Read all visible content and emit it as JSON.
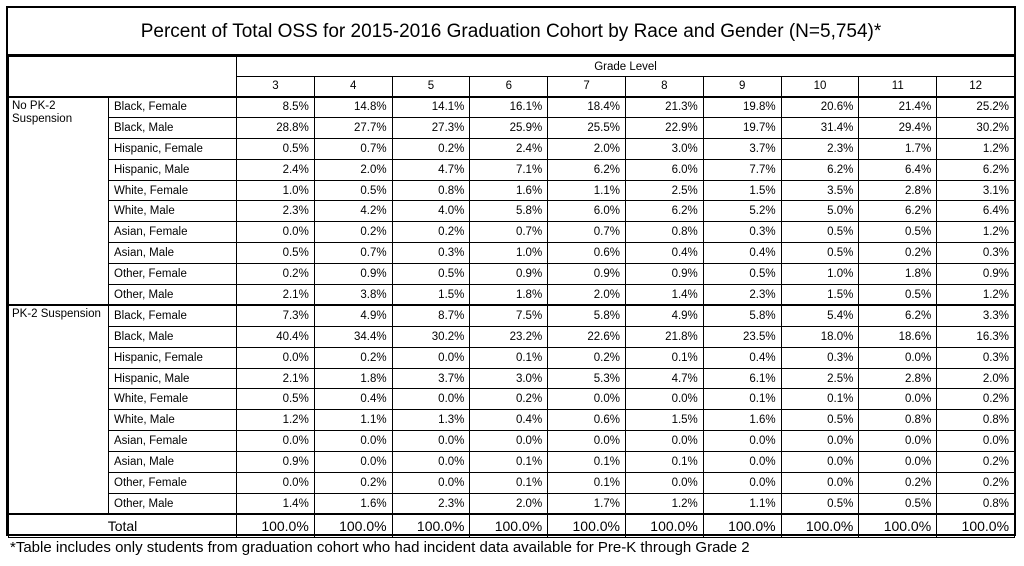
{
  "title": "Percent of Total OSS for 2015-2016 Graduation Cohort by Race and Gender (N=5,754)*",
  "grade_level_label": "Grade Level",
  "grades": [
    "3",
    "4",
    "5",
    "6",
    "7",
    "8",
    "9",
    "10",
    "11",
    "12"
  ],
  "groups": [
    {
      "label": "No PK-2 Suspension",
      "rows": [
        {
          "category": "Black, Female",
          "values": [
            "8.5%",
            "14.8%",
            "14.1%",
            "16.1%",
            "18.4%",
            "21.3%",
            "19.8%",
            "20.6%",
            "21.4%",
            "25.2%"
          ]
        },
        {
          "category": "Black, Male",
          "values": [
            "28.8%",
            "27.7%",
            "27.3%",
            "25.9%",
            "25.5%",
            "22.9%",
            "19.7%",
            "31.4%",
            "29.4%",
            "30.2%"
          ]
        },
        {
          "category": "Hispanic, Female",
          "values": [
            "0.5%",
            "0.7%",
            "0.2%",
            "2.4%",
            "2.0%",
            "3.0%",
            "3.7%",
            "2.3%",
            "1.7%",
            "1.2%"
          ]
        },
        {
          "category": "Hispanic, Male",
          "values": [
            "2.4%",
            "2.0%",
            "4.7%",
            "7.1%",
            "6.2%",
            "6.0%",
            "7.7%",
            "6.2%",
            "6.4%",
            "6.2%"
          ]
        },
        {
          "category": "White, Female",
          "values": [
            "1.0%",
            "0.5%",
            "0.8%",
            "1.6%",
            "1.1%",
            "2.5%",
            "1.5%",
            "3.5%",
            "2.8%",
            "3.1%"
          ]
        },
        {
          "category": "White, Male",
          "values": [
            "2.3%",
            "4.2%",
            "4.0%",
            "5.8%",
            "6.0%",
            "6.2%",
            "5.2%",
            "5.0%",
            "6.2%",
            "6.4%"
          ]
        },
        {
          "category": "Asian, Female",
          "values": [
            "0.0%",
            "0.2%",
            "0.2%",
            "0.7%",
            "0.7%",
            "0.8%",
            "0.3%",
            "0.5%",
            "0.5%",
            "1.2%"
          ]
        },
        {
          "category": "Asian, Male",
          "values": [
            "0.5%",
            "0.7%",
            "0.3%",
            "1.0%",
            "0.6%",
            "0.4%",
            "0.4%",
            "0.5%",
            "0.2%",
            "0.3%"
          ]
        },
        {
          "category": "Other, Female",
          "values": [
            "0.2%",
            "0.9%",
            "0.5%",
            "0.9%",
            "0.9%",
            "0.9%",
            "0.5%",
            "1.0%",
            "1.8%",
            "0.9%"
          ]
        },
        {
          "category": "Other, Male",
          "values": [
            "2.1%",
            "3.8%",
            "1.5%",
            "1.8%",
            "2.0%",
            "1.4%",
            "2.3%",
            "1.5%",
            "0.5%",
            "1.2%"
          ]
        }
      ]
    },
    {
      "label": "PK-2 Suspension",
      "rows": [
        {
          "category": "Black, Female",
          "values": [
            "7.3%",
            "4.9%",
            "8.7%",
            "7.5%",
            "5.8%",
            "4.9%",
            "5.8%",
            "5.4%",
            "6.2%",
            "3.3%"
          ]
        },
        {
          "category": "Black, Male",
          "values": [
            "40.4%",
            "34.4%",
            "30.2%",
            "23.2%",
            "22.6%",
            "21.8%",
            "23.5%",
            "18.0%",
            "18.6%",
            "16.3%"
          ]
        },
        {
          "category": "Hispanic, Female",
          "values": [
            "0.0%",
            "0.2%",
            "0.0%",
            "0.1%",
            "0.2%",
            "0.1%",
            "0.4%",
            "0.3%",
            "0.0%",
            "0.3%"
          ]
        },
        {
          "category": "Hispanic, Male",
          "values": [
            "2.1%",
            "1.8%",
            "3.7%",
            "3.0%",
            "5.3%",
            "4.7%",
            "6.1%",
            "2.5%",
            "2.8%",
            "2.0%"
          ]
        },
        {
          "category": "White, Female",
          "values": [
            "0.5%",
            "0.4%",
            "0.0%",
            "0.2%",
            "0.0%",
            "0.0%",
            "0.1%",
            "0.1%",
            "0.0%",
            "0.2%"
          ]
        },
        {
          "category": "White, Male",
          "values": [
            "1.2%",
            "1.1%",
            "1.3%",
            "0.4%",
            "0.6%",
            "1.5%",
            "1.6%",
            "0.5%",
            "0.8%",
            "0.8%"
          ]
        },
        {
          "category": "Asian, Female",
          "values": [
            "0.0%",
            "0.0%",
            "0.0%",
            "0.0%",
            "0.0%",
            "0.0%",
            "0.0%",
            "0.0%",
            "0.0%",
            "0.0%"
          ]
        },
        {
          "category": "Asian, Male",
          "values": [
            "0.9%",
            "0.0%",
            "0.0%",
            "0.1%",
            "0.1%",
            "0.1%",
            "0.0%",
            "0.0%",
            "0.0%",
            "0.2%"
          ]
        },
        {
          "category": "Other, Female",
          "values": [
            "0.0%",
            "0.2%",
            "0.0%",
            "0.1%",
            "0.1%",
            "0.0%",
            "0.0%",
            "0.0%",
            "0.2%",
            "0.2%"
          ]
        },
        {
          "category": "Other, Male",
          "values": [
            "1.4%",
            "1.6%",
            "2.3%",
            "2.0%",
            "1.7%",
            "1.2%",
            "1.1%",
            "0.5%",
            "0.5%",
            "0.8%"
          ]
        }
      ]
    }
  ],
  "total": {
    "label": "Total",
    "values": [
      "100.0%",
      "100.0%",
      "100.0%",
      "100.0%",
      "100.0%",
      "100.0%",
      "100.0%",
      "100.0%",
      "100.0%",
      "100.0%"
    ]
  },
  "footnote": "*Table includes only students from graduation cohort who had incident data available for Pre-K through Grade 2"
}
